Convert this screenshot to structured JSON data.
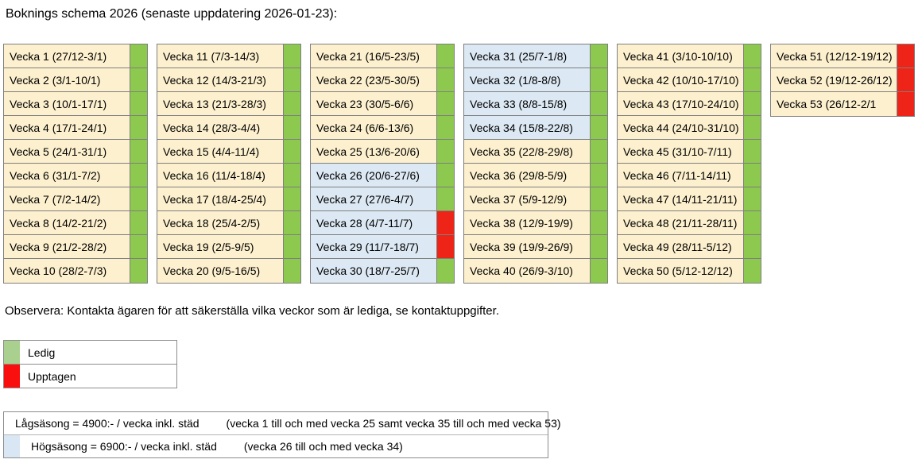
{
  "title": "Boknings schema 2026 (senaste uppdatering 2026-01-23):",
  "note": "Observera: Kontakta ägaren för att säkerställa vilka veckor som är lediga, se kontaktuppgifter.",
  "colors": {
    "low_season_bg": "#fdf0ce",
    "high_season_bg": "#dce8f3",
    "free": "#8cc94e",
    "booked": "#ee2418",
    "legend_free": "#a9d08e",
    "legend_booked": "#fa0f0f",
    "legend_low": "#fbe5c5",
    "legend_high": "#d9e7f5",
    "border": "#7f7f7f"
  },
  "status_legend": [
    {
      "label": "Ledig",
      "status": "free"
    },
    {
      "label": "Upptagen",
      "status": "booked"
    }
  ],
  "season_legend": [
    {
      "label": "Lågsäsong = 4900:- / vecka inkl. städ",
      "note": "(vecka 1 till och med vecka 25 samt vecka 35 till och med vecka 53)",
      "season": "low"
    },
    {
      "label": "Högsäsong = 6900:- / vecka inkl. städ",
      "note": "(vecka 26 till och med vecka 34)",
      "season": "high"
    }
  ],
  "columns": [
    {
      "weeks": [
        {
          "label": "Vecka 1 (27/12-3/1)",
          "season": "low",
          "status": "free"
        },
        {
          "label": "Vecka 2 (3/1-10/1)",
          "season": "low",
          "status": "free"
        },
        {
          "label": "Vecka 3 (10/1-17/1)",
          "season": "low",
          "status": "free"
        },
        {
          "label": "Vecka 4 (17/1-24/1)",
          "season": "low",
          "status": "free"
        },
        {
          "label": "Vecka 5 (24/1-31/1)",
          "season": "low",
          "status": "free"
        },
        {
          "label": "Vecka 6 (31/1-7/2)",
          "season": "low",
          "status": "free"
        },
        {
          "label": "Vecka 7 (7/2-14/2)",
          "season": "low",
          "status": "free"
        },
        {
          "label": "Vecka 8 (14/2-21/2)",
          "season": "low",
          "status": "free"
        },
        {
          "label": "Vecka 9 (21/2-28/2)",
          "season": "low",
          "status": "free"
        },
        {
          "label": "Vecka 10 (28/2-7/3)",
          "season": "low",
          "status": "free"
        }
      ]
    },
    {
      "weeks": [
        {
          "label": "Vecka 11 (7/3-14/3)",
          "season": "low",
          "status": "free"
        },
        {
          "label": "Vecka 12 (14/3-21/3)",
          "season": "low",
          "status": "free"
        },
        {
          "label": "Vecka 13 (21/3-28/3)",
          "season": "low",
          "status": "free"
        },
        {
          "label": "Vecka 14 (28/3-4/4)",
          "season": "low",
          "status": "free"
        },
        {
          "label": "Vecka 15 (4/4-11/4)",
          "season": "low",
          "status": "free"
        },
        {
          "label": "Vecka 16 (11/4-18/4)",
          "season": "low",
          "status": "free"
        },
        {
          "label": "Vecka 17 (18/4-25/4)",
          "season": "low",
          "status": "free"
        },
        {
          "label": "Vecka 18 (25/4-2/5)",
          "season": "low",
          "status": "free"
        },
        {
          "label": "Vecka 19 (2/5-9/5)",
          "season": "low",
          "status": "free"
        },
        {
          "label": "Vecka 20 (9/5-16/5)",
          "season": "low",
          "status": "free"
        }
      ]
    },
    {
      "weeks": [
        {
          "label": "Vecka 21 (16/5-23/5)",
          "season": "low",
          "status": "free"
        },
        {
          "label": "Vecka 22 (23/5-30/5)",
          "season": "low",
          "status": "free"
        },
        {
          "label": "Vecka 23 (30/5-6/6)",
          "season": "low",
          "status": "free"
        },
        {
          "label": "Vecka 24 (6/6-13/6)",
          "season": "low",
          "status": "free"
        },
        {
          "label": "Vecka 25 (13/6-20/6)",
          "season": "low",
          "status": "free"
        },
        {
          "label": "Vecka 26 (20/6-27/6)",
          "season": "high",
          "status": "free"
        },
        {
          "label": "Vecka 27 (27/6-4/7)",
          "season": "high",
          "status": "free"
        },
        {
          "label": "Vecka 28 (4/7-11/7)",
          "season": "high",
          "status": "booked"
        },
        {
          "label": "Vecka 29 (11/7-18/7)",
          "season": "high",
          "status": "booked"
        },
        {
          "label": "Vecka 30 (18/7-25/7)",
          "season": "high",
          "status": "free"
        }
      ]
    },
    {
      "weeks": [
        {
          "label": "Vecka 31 (25/7-1/8)",
          "season": "high",
          "status": "free"
        },
        {
          "label": "Vecka 32 (1/8-8/8)",
          "season": "high",
          "status": "free"
        },
        {
          "label": "Vecka 33 (8/8-15/8)",
          "season": "high",
          "status": "free"
        },
        {
          "label": "Vecka 34 (15/8-22/8)",
          "season": "high",
          "status": "free"
        },
        {
          "label": "Vecka 35 (22/8-29/8)",
          "season": "low",
          "status": "free"
        },
        {
          "label": "Vecka 36 (29/8-5/9)",
          "season": "low",
          "status": "free"
        },
        {
          "label": "Vecka 37 (5/9-12/9)",
          "season": "low",
          "status": "free"
        },
        {
          "label": "Vecka 38 (12/9-19/9)",
          "season": "low",
          "status": "free"
        },
        {
          "label": "Vecka 39 (19/9-26/9)",
          "season": "low",
          "status": "free"
        },
        {
          "label": "Vecka 40 (26/9-3/10)",
          "season": "low",
          "status": "free"
        }
      ]
    },
    {
      "weeks": [
        {
          "label": "Vecka 41 (3/10-10/10)",
          "season": "low",
          "status": "free"
        },
        {
          "label": "Vecka 42 (10/10-17/10)",
          "season": "low",
          "status": "free"
        },
        {
          "label": "Vecka 43 (17/10-24/10)",
          "season": "low",
          "status": "free"
        },
        {
          "label": "Vecka 44 (24/10-31/10)",
          "season": "low",
          "status": "free"
        },
        {
          "label": "Vecka 45 (31/10-7/11)",
          "season": "low",
          "status": "free"
        },
        {
          "label": "Vecka 46 (7/11-14/11)",
          "season": "low",
          "status": "free"
        },
        {
          "label": "Vecka 47 (14/11-21/11)",
          "season": "low",
          "status": "free"
        },
        {
          "label": "Vecka 48 (21/11-28/11)",
          "season": "low",
          "status": "free"
        },
        {
          "label": "Vecka 49 (28/11-5/12)",
          "season": "low",
          "status": "free"
        },
        {
          "label": "Vecka 50 (5/12-12/12)",
          "season": "low",
          "status": "free"
        }
      ]
    },
    {
      "weeks": [
        {
          "label": "Vecka 51 (12/12-19/12)",
          "season": "low",
          "status": "booked"
        },
        {
          "label": "Vecka 52 (19/12-26/12)",
          "season": "low",
          "status": "booked"
        },
        {
          "label": "Vecka 53 (26/12-2/1",
          "season": "low",
          "status": "booked"
        }
      ]
    }
  ]
}
